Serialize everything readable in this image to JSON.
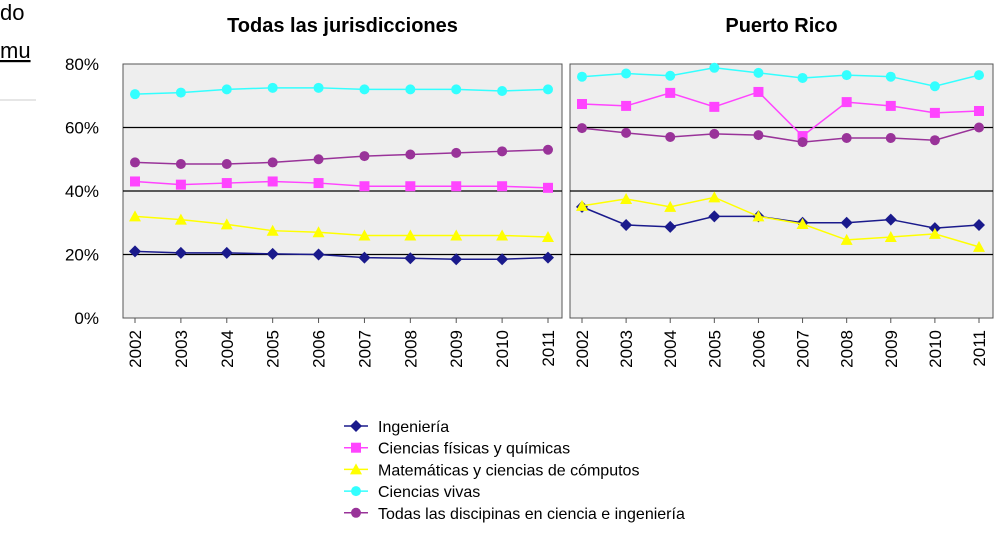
{
  "page_text": [
    "do",
    "mu"
  ],
  "chart_data": [
    {
      "type": "line",
      "title": "Todas las jurisdicciones",
      "x": [
        "2002",
        "2003",
        "2004",
        "2005",
        "2006",
        "2007",
        "2008",
        "2009",
        "2010",
        "2011"
      ],
      "ylim": [
        0,
        80
      ],
      "yticks": [
        {
          "value": 0,
          "label": "0%"
        },
        {
          "value": 20,
          "label": "20%"
        },
        {
          "value": 40,
          "label": "40%"
        },
        {
          "value": 60,
          "label": "60%"
        },
        {
          "value": 80,
          "label": "80%"
        }
      ],
      "grid": true,
      "series": [
        {
          "name": "Ingeniería",
          "color": "#1a1a8c",
          "marker": "diamond",
          "values": [
            21,
            20.5,
            20.5,
            20.2,
            20,
            19,
            18.8,
            18.5,
            18.5,
            19
          ]
        },
        {
          "name": "Ciencias físicas y químicas",
          "color": "#ff44ff",
          "marker": "square",
          "values": [
            43,
            42,
            42.5,
            43,
            42.5,
            41.5,
            41.5,
            41.5,
            41.5,
            41
          ]
        },
        {
          "name": "Matemáticas y ciencias de cómputos",
          "color": "#ffff00",
          "marker": "triangle",
          "values": [
            32,
            31,
            29.5,
            27.5,
            27,
            26,
            26,
            26,
            26,
            25.5
          ]
        },
        {
          "name": "Ciencias vivas",
          "color": "#33ffff",
          "marker": "circle",
          "values": [
            70.5,
            71,
            72,
            72.5,
            72.5,
            72,
            72,
            72,
            71.5,
            72
          ]
        },
        {
          "name": "Todas las discipinas en ciencia e ingeniería",
          "color": "#993399",
          "marker": "circle",
          "values": [
            49,
            48.5,
            48.5,
            49,
            50,
            51,
            51.5,
            52,
            52.5,
            53
          ]
        }
      ]
    },
    {
      "type": "line",
      "title": "Puerto Rico",
      "x": [
        "2002",
        "2003",
        "2004",
        "2005",
        "2006",
        "2007",
        "2008",
        "2009",
        "2010",
        "2011"
      ],
      "ylim": [
        0,
        80
      ],
      "yticks": [
        0,
        20,
        40,
        60,
        80
      ],
      "grid": true,
      "series": [
        {
          "color": "#1a1a8c",
          "marker": "diamond",
          "values": [
            35,
            29.3,
            28.7,
            32,
            32,
            30,
            30,
            31,
            28.3,
            29.3
          ]
        },
        {
          "color": "#ff44ff",
          "marker": "square",
          "values": [
            67.4,
            66.8,
            70.9,
            66.5,
            71.2,
            57.3,
            68,
            66.8,
            64.6,
            65.2
          ]
        },
        {
          "color": "#ffff00",
          "marker": "triangle",
          "values": [
            35.3,
            37.5,
            35,
            38,
            32,
            29.6,
            24.6,
            25.5,
            26.5,
            22.4
          ]
        },
        {
          "color": "#33ffff",
          "marker": "circle",
          "values": [
            76,
            77,
            76.3,
            78.8,
            77.2,
            75.6,
            76.5,
            76,
            73,
            76.5
          ]
        },
        {
          "color": "#993399",
          "marker": "circle",
          "values": [
            59.8,
            58.3,
            57,
            58,
            57.6,
            55.4,
            56.7,
            56.7,
            56,
            60
          ]
        }
      ]
    }
  ]
}
